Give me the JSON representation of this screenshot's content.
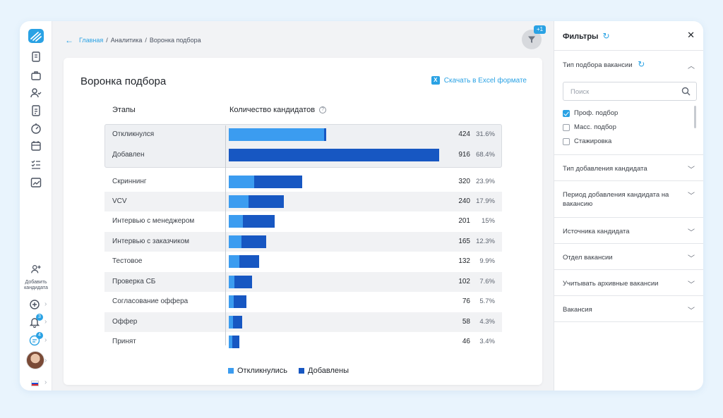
{
  "breadcrumb": {
    "home": "Главная",
    "sep": "/",
    "section": "Аналитика",
    "current": "Воронка подбора"
  },
  "filter_badge": "+1",
  "rail": {
    "add_candidate_label": "Добавить кандидата",
    "notifications_badge": "3",
    "messages_badge": "4"
  },
  "card": {
    "title": "Воронка подбора",
    "excel_label": "Скачать в Excel формате",
    "col_stages": "Этапы",
    "col_count": "Количество кандидатов",
    "help_mark": "?"
  },
  "funnel": {
    "max_value": 916,
    "rows": [
      {
        "name": "Откликнулся",
        "count": "424",
        "pct": "31.6%",
        "responded": 416,
        "added": 8
      },
      {
        "name": "Добавлен",
        "count": "916",
        "pct": "68.4%",
        "responded": 0,
        "added": 916
      },
      {
        "name": "Скриннинг",
        "count": "320",
        "pct": "23.9%",
        "responded": 111,
        "added": 209
      },
      {
        "name": "VCV",
        "count": "240",
        "pct": "17.9%",
        "responded": 86,
        "added": 154
      },
      {
        "name": "Интервью с менеджером",
        "count": "201",
        "pct": "15%",
        "responded": 62,
        "added": 139
      },
      {
        "name": "Интервью с заказчиком",
        "count": "165",
        "pct": "12.3%",
        "responded": 56,
        "added": 109
      },
      {
        "name": "Тестовое",
        "count": "132",
        "pct": "9.9%",
        "responded": 46,
        "added": 86
      },
      {
        "name": "Проверка СБ",
        "count": "102",
        "pct": "7.6%",
        "responded": 25,
        "added": 77
      },
      {
        "name": "Согласование оффера",
        "count": "76",
        "pct": "5.7%",
        "responded": 22,
        "added": 54
      },
      {
        "name": "Оффер",
        "count": "58",
        "pct": "4.3%",
        "responded": 19,
        "added": 39
      },
      {
        "name": "Принят",
        "count": "46",
        "pct": "3.4%",
        "responded": 15,
        "added": 31
      }
    ]
  },
  "legend": {
    "responded": "Откликнулись",
    "added": "Добавлены"
  },
  "colors": {
    "responded": "#3b9cf0",
    "added": "#1757c2",
    "accent": "#2aa2e4"
  },
  "filters": {
    "title": "Фильтры",
    "close": "✕",
    "selection_type": {
      "title": "Тип подбора вакансии",
      "search_placeholder": "Поиск",
      "options": [
        {
          "label": "Проф. подбор",
          "checked": true
        },
        {
          "label": "Масс. подбор",
          "checked": false
        },
        {
          "label": "Стажировка",
          "checked": false
        }
      ]
    },
    "sections": [
      "Тип добавления кандидата",
      "Период добавления кандидата на вакансию",
      "Источника кандидата",
      "Отдел вакансии",
      "Учитывать архивные вакансии",
      "Вакансия"
    ]
  }
}
